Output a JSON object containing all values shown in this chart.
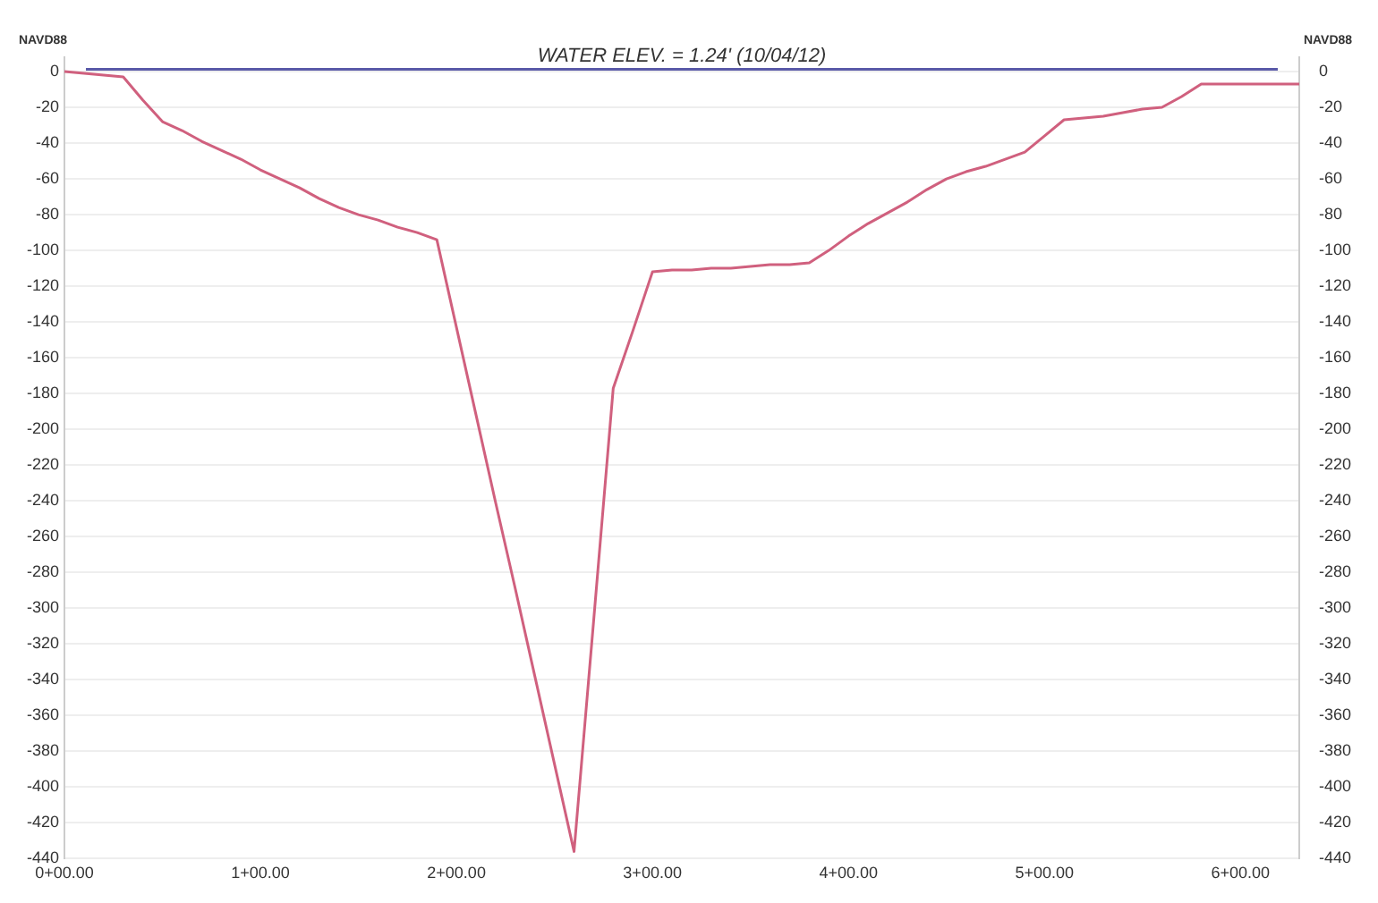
{
  "chart_data": {
    "type": "line",
    "ylabel": "NAVD88",
    "y2label": "NAVD88",
    "categories": [
      "0+00.00",
      null,
      null,
      null,
      null,
      null,
      null,
      null,
      null,
      null,
      "1+00.00",
      null,
      null,
      null,
      null,
      null,
      null,
      null,
      null,
      null,
      "2+00.00",
      null,
      null,
      null,
      null,
      null,
      null,
      null,
      null,
      null,
      "3+00.00",
      null,
      null,
      null,
      null,
      null,
      null,
      null,
      null,
      null,
      "4+00.00",
      null,
      null,
      null,
      null,
      null,
      null,
      null,
      null,
      null,
      "5+00.00",
      null,
      null,
      null,
      null,
      null,
      null,
      null,
      null,
      null,
      "6+00.00",
      null,
      null,
      null
    ],
    "series": [
      {
        "color": "#d0607e",
        "values": [
          0,
          -1,
          -2,
          -3,
          -16,
          -28,
          -33,
          -39,
          -44,
          -49,
          -55,
          -60,
          -65,
          -71,
          -76,
          -80,
          -83,
          -87,
          -90,
          -94,
          -143,
          -192,
          -241,
          -289,
          -338,
          -387,
          -436,
          -307,
          -177,
          -145,
          -112,
          -111,
          -111,
          -110,
          -110,
          -109,
          -108,
          -108,
          -107,
          -100,
          -92,
          -85,
          -79,
          -73,
          -66,
          -60,
          -56,
          -53,
          -49,
          -45,
          -36,
          -27,
          -26,
          -25,
          -23,
          -21,
          -20,
          -14,
          -7,
          -7,
          -7,
          -7,
          -7,
          -7
        ]
      }
    ],
    "ylim": [
      -440,
      8
    ],
    "yticks": [
      0,
      -20,
      -40,
      -60,
      -80,
      -100,
      -120,
      -140,
      -160,
      -180,
      -200,
      -220,
      -240,
      -260,
      -280,
      -300,
      -320,
      -340,
      -360,
      -380,
      -400,
      -420,
      -440
    ],
    "y2lim": [
      -440,
      8
    ],
    "y2ticks": [
      0,
      -20,
      -40,
      -60,
      -80,
      -100,
      -120,
      -140,
      -160,
      -180,
      -200,
      -220,
      -240,
      -260,
      -280,
      -300,
      -320,
      -340,
      -360,
      -380,
      -400,
      -420,
      -440
    ],
    "ref_lines": [
      {
        "axis": "y",
        "value": 1.24,
        "label": "WATER ELEV. = 1.24' (10/04/12)",
        "color": "#5a5aa8",
        "line_style": "solid"
      }
    ],
    "grid": "y",
    "legend": false,
    "marker": "none",
    "line_style": "solid"
  }
}
